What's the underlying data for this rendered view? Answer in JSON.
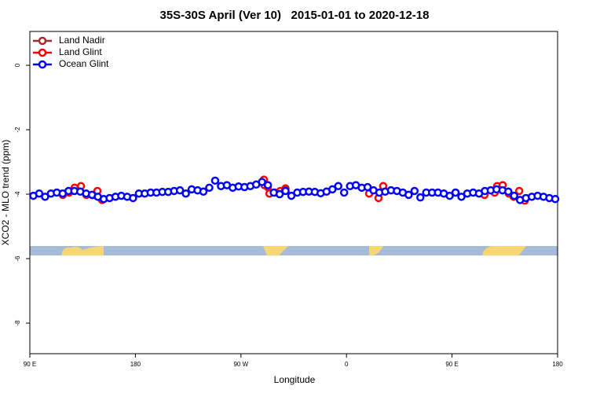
{
  "chart_data": {
    "type": "scatter",
    "title": "35S-30S April (Ver 10)   2015-01-01 to 2020-12-18",
    "xlabel": "Longitude",
    "ylabel": "XCO2 - MLO trend (ppm)",
    "xlim": [
      90,
      540
    ],
    "ylim": [
      -8.95,
      1.05
    ],
    "xticks": [
      {
        "value": 90,
        "label": "90 E"
      },
      {
        "value": 180,
        "label": "180"
      },
      {
        "value": 270,
        "label": "90 W"
      },
      {
        "value": 360,
        "label": "0"
      },
      {
        "value": 450,
        "label": "90 E"
      },
      {
        "value": 540,
        "label": "180"
      }
    ],
    "yticks": [
      0,
      -2,
      -4,
      -6,
      -8
    ],
    "legend": "top-left",
    "series": [
      {
        "name": "Land Nadir",
        "color": "#a52a2a",
        "x": [
          290,
          308,
          486
        ],
        "values": [
          -3.72,
          -3.82,
          -3.92
        ]
      },
      {
        "name": "Land Glint",
        "color": "#ff0000",
        "x": [
          118.1,
          123.5,
          128.2,
          133.6,
          138.2,
          143.6,
          147.6,
          151.6,
          289.6,
          292.9,
          294.3,
          299,
          303.6,
          307.7,
          379.3,
          387.3,
          391.3,
          477.7,
          486.4,
          488.4,
          493.2,
          498.5,
          502.6,
          507.3,
          512
        ],
        "values": [
          -4.02,
          -3.95,
          -3.8,
          -3.75,
          -4.02,
          -4.03,
          -3.9,
          -4.18,
          -3.55,
          -3.78,
          -3.98,
          -3.95,
          -3.9,
          -3.85,
          -3.98,
          -4.12,
          -3.75,
          -4.02,
          -3.95,
          -3.75,
          -3.72,
          -3.98,
          -4.08,
          -3.9,
          -4.2
        ]
      },
      {
        "name": "Ocean Glint",
        "color": "#0000ff",
        "x": [
          93,
          98,
          103,
          108,
          113,
          118,
          123,
          128,
          133,
          138,
          143,
          148,
          153,
          158,
          163,
          168,
          173,
          178,
          183,
          188,
          193,
          198,
          203,
          208,
          213,
          218,
          223,
          228,
          233,
          238,
          243,
          248,
          253,
          258,
          263,
          268,
          273,
          278,
          283,
          288,
          293,
          298,
          303,
          308,
          313,
          318,
          323,
          328,
          333,
          338,
          343,
          348,
          353,
          358,
          363,
          368,
          373,
          378,
          383,
          388,
          393,
          398,
          403,
          408,
          413,
          418,
          423,
          428,
          433,
          438,
          443,
          448,
          453,
          458,
          463,
          468,
          473,
          478,
          483,
          488,
          493,
          498,
          503,
          508,
          513,
          518,
          523,
          528,
          533,
          538
        ],
        "values": [
          -4.05,
          -3.98,
          -4.08,
          -3.98,
          -3.95,
          -3.98,
          -3.9,
          -3.9,
          -3.92,
          -3.98,
          -4.02,
          -4.08,
          -4.15,
          -4.12,
          -4.08,
          -4.05,
          -4.08,
          -4.12,
          -3.98,
          -3.98,
          -3.95,
          -3.95,
          -3.93,
          -3.93,
          -3.9,
          -3.88,
          -3.98,
          -3.85,
          -3.88,
          -3.92,
          -3.8,
          -3.58,
          -3.75,
          -3.72,
          -3.8,
          -3.76,
          -3.78,
          -3.75,
          -3.7,
          -3.62,
          -3.72,
          -3.95,
          -4.0,
          -3.9,
          -4.05,
          -3.95,
          -3.93,
          -3.92,
          -3.93,
          -3.97,
          -3.92,
          -3.85,
          -3.75,
          -3.95,
          -3.75,
          -3.72,
          -3.8,
          -3.78,
          -3.88,
          -3.95,
          -3.92,
          -3.88,
          -3.9,
          -3.95,
          -4.02,
          -3.9,
          -4.1,
          -3.95,
          -3.95,
          -3.95,
          -3.98,
          -4.05,
          -3.95,
          -4.08,
          -3.98,
          -3.95,
          -3.98,
          -3.9,
          -3.88,
          -3.85,
          -3.88,
          -3.92,
          -4.05,
          -4.18,
          -4.12,
          -4.08,
          -4.05,
          -4.08,
          -4.12,
          -4.15
        ]
      }
    ]
  }
}
